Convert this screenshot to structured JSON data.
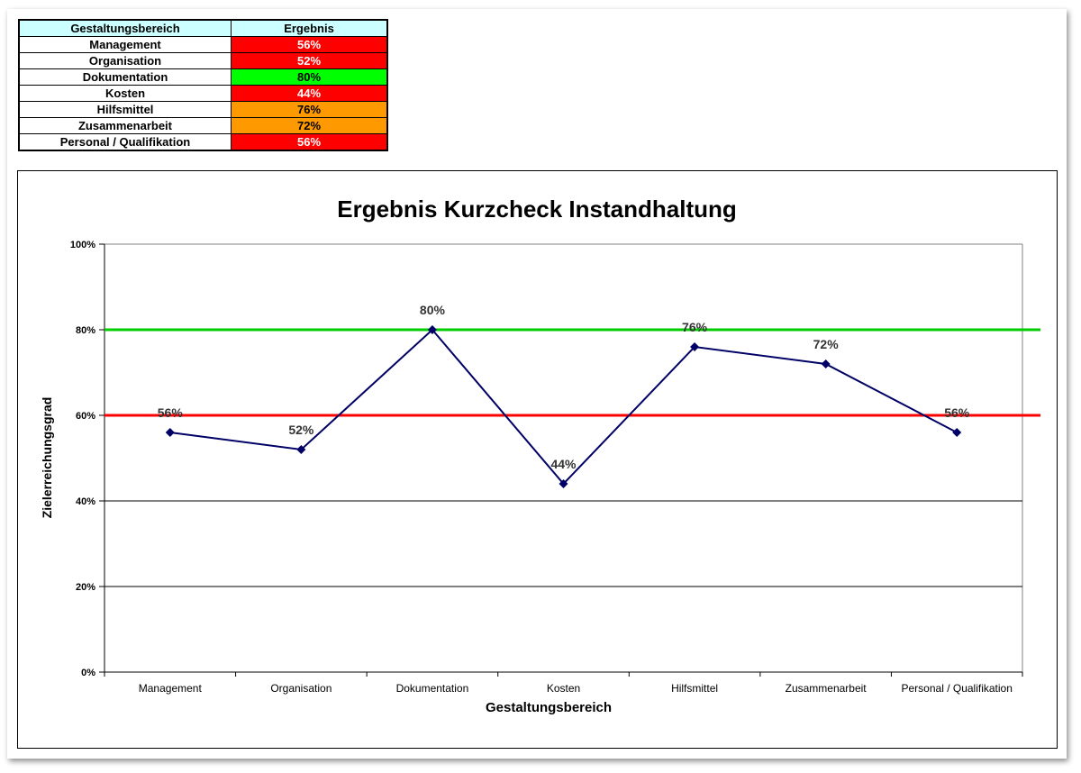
{
  "table": {
    "headers": [
      "Gestaltungsbereich",
      "Ergebnis"
    ],
    "rows": [
      {
        "label": "Management",
        "value": "56%",
        "color": "#ff0000"
      },
      {
        "label": "Organisation",
        "value": "52%",
        "color": "#ff0000"
      },
      {
        "label": "Dokumentation",
        "value": "80%",
        "color": "#00ff00"
      },
      {
        "label": "Kosten",
        "value": "44%",
        "color": "#ff0000"
      },
      {
        "label": "Hilfsmittel",
        "value": "76%",
        "color": "#ff9900"
      },
      {
        "label": "Zusammenarbeit",
        "value": "72%",
        "color": "#ff9900"
      },
      {
        "label": "Personal / Qualifikation",
        "value": "56%",
        "color": "#ff0000"
      }
    ]
  },
  "chart_data": {
    "type": "line",
    "title": "Ergebnis Kurzcheck Instandhaltung",
    "xlabel": "Gestaltungsbereich",
    "ylabel": "Zielerreichungsgrad",
    "categories": [
      "Management",
      "Organisation",
      "Dokumentation",
      "Kosten",
      "Hilfsmittel",
      "Zusammenarbeit",
      "Personal / Qualifikation"
    ],
    "series": [
      {
        "values": [
          56,
          52,
          80,
          44,
          76,
          72,
          56
        ],
        "color": "#000066"
      }
    ],
    "data_labels": [
      "56%",
      "52%",
      "80%",
      "44%",
      "76%",
      "72%",
      "56%"
    ],
    "ylim": [
      0,
      100
    ],
    "yticks": [
      0,
      20,
      40,
      60,
      80,
      100
    ],
    "ytick_labels": [
      "0%",
      "20%",
      "40%",
      "60%",
      "80%",
      "100%"
    ],
    "reference_lines": [
      {
        "value": 80,
        "color": "#00cc00"
      },
      {
        "value": 60,
        "color": "#ff0000"
      }
    ],
    "grid": true,
    "legend": "none"
  }
}
